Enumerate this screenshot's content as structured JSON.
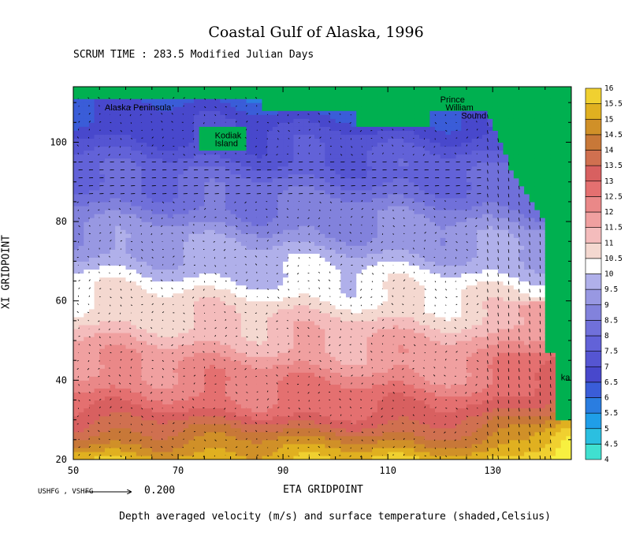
{
  "chart_data": {
    "type": "heatmap",
    "title": "Coastal Gulf of Alaska, 1996",
    "subtitle": "SCRUM TIME : 283.5 Modified Julian Days",
    "xlabel": "ETA GRIDPOINT",
    "ylabel": "XI GRIDPOINT",
    "caption": "Depth averaged velocity (m/s) and surface temperature (shaded,Celsius)",
    "xlim": [
      50,
      145
    ],
    "ylim": [
      20,
      114
    ],
    "x_ticks": [
      50,
      70,
      90,
      110,
      130
    ],
    "y_ticks": [
      20,
      40,
      60,
      80,
      100
    ],
    "reference_vector": {
      "label": "USHFG , VSHFG",
      "value": "0.200"
    },
    "colorbar": {
      "levels": [
        "4",
        "4.5",
        "5",
        "5.5",
        "6",
        "6.5",
        "7",
        "7.5",
        "8",
        "8.5",
        "9",
        "9.5",
        "10",
        "10.5",
        "11",
        "11.5",
        "12",
        "12.5",
        "13",
        "13.5",
        "14",
        "14.5",
        "15",
        "15.5",
        "16"
      ],
      "colors": [
        "#40e0d0",
        "#2bbfe0",
        "#1f9ee8",
        "#2a7de0",
        "#3a5dd8",
        "#4848cc",
        "#5555d2",
        "#6262d8",
        "#7070da",
        "#8282dc",
        "#9898e2",
        "#b0b0ea",
        "#ffffff",
        "#f4d8d0",
        "#f4bcbc",
        "#f0a0a0",
        "#ea8888",
        "#e47070",
        "#d86060",
        "#d07050",
        "#c87838",
        "#d09028",
        "#e0b020",
        "#f0d030",
        "#f8f040"
      ]
    },
    "land_color": "#00b050",
    "annotations": [
      {
        "text": "Alaska Peninsula",
        "x": 56,
        "y": 108
      },
      {
        "text": "Kodiak",
        "x": 77,
        "y": 101
      },
      {
        "text": "Island",
        "x": 77,
        "y": 99
      },
      {
        "text": "Prince",
        "x": 120,
        "y": 110
      },
      {
        "text": "William",
        "x": 121,
        "y": 108
      },
      {
        "text": "Sound",
        "x": 124,
        "y": 106
      },
      {
        "text": "ka",
        "x": 143,
        "y": 40
      }
    ],
    "legend": "right"
  }
}
